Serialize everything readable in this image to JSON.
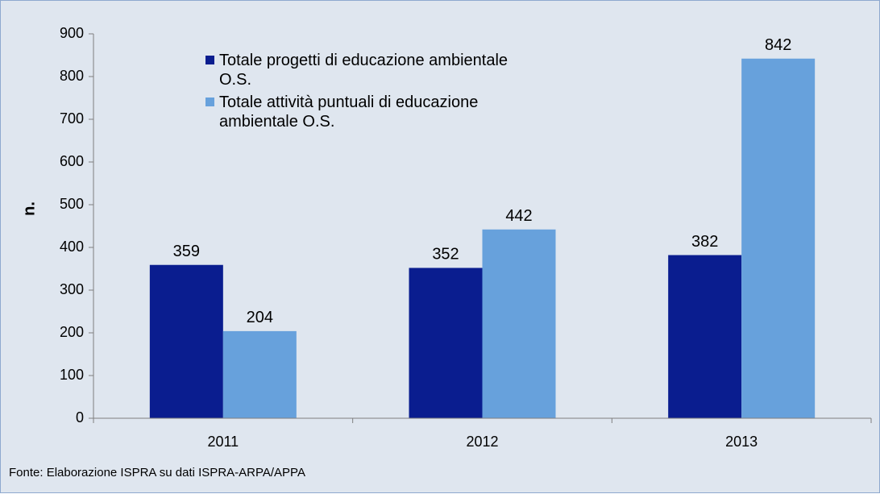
{
  "chart_data": {
    "type": "bar",
    "ylabel": "n.",
    "source": "Fonte: Elaborazione ISPRA su dati ISPRA-ARPA/APPA",
    "categories": [
      "2011",
      "2012",
      "2013"
    ],
    "series": [
      {
        "name": "Totale progetti di educazione ambientale O.S.",
        "color": "#0a1d8f",
        "values": [
          359,
          352,
          382
        ]
      },
      {
        "name": "Totale attività puntuali di educazione ambientale O.S.",
        "color": "#67a1dc",
        "values": [
          204,
          442,
          842
        ]
      }
    ],
    "ylim": [
      0,
      900
    ],
    "yticks": [
      0,
      100,
      200,
      300,
      400,
      500,
      600,
      700,
      800,
      900
    ],
    "grid": false
  }
}
